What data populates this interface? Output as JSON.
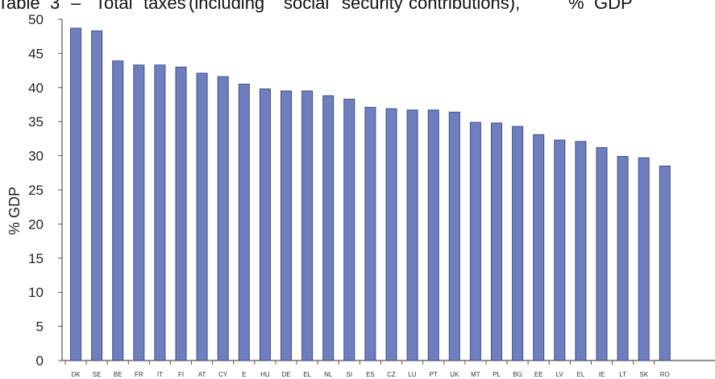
{
  "caption": {
    "words": [
      "Table",
      "3",
      "–",
      "Total",
      "taxes",
      "(including",
      "social",
      "security",
      "contributions),",
      "%",
      "GDP"
    ]
  },
  "chart_data": {
    "type": "bar",
    "title": "",
    "xlabel": "",
    "ylabel": "% GDP",
    "ylim": [
      0,
      50
    ],
    "yticks": [
      0,
      5,
      10,
      15,
      20,
      25,
      30,
      35,
      40,
      45,
      50
    ],
    "grid": false,
    "categories": [
      "DK",
      "SE",
      "BE",
      "FR",
      "IT",
      "FI",
      "AT",
      "CY",
      "E",
      "HU",
      "DE",
      "EL",
      "NL",
      "SI",
      "ES",
      "CZ",
      "LU",
      "PT",
      "UK",
      "MT",
      "PL",
      "BG",
      "EE",
      "LV",
      "EL",
      "IE",
      "LT",
      "SK",
      "RO"
    ],
    "values": [
      48.7,
      48.3,
      43.9,
      43.3,
      43.3,
      43.0,
      42.1,
      41.6,
      40.5,
      39.8,
      39.5,
      39.5,
      38.8,
      38.3,
      37.1,
      36.9,
      36.7,
      36.7,
      36.4,
      34.9,
      34.8,
      34.3,
      33.1,
      32.3,
      32.1,
      31.2,
      29.9,
      29.7,
      28.5
    ],
    "colors": {
      "bar": "#6f7fbe",
      "bar_edge": "#3e4c8a",
      "axis": "#555555"
    }
  }
}
